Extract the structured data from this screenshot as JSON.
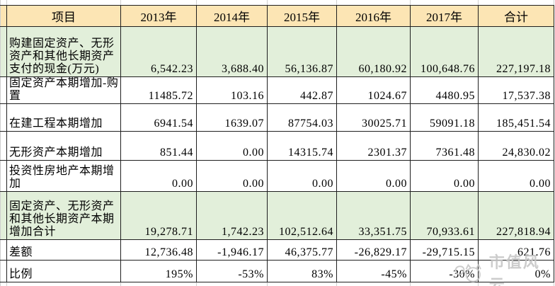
{
  "table": {
    "header": [
      "项目",
      "2013年",
      "2014年",
      "2015年",
      "2016年",
      "2017年",
      "合计"
    ],
    "rows": [
      {
        "label": "购建固定资产、无形资产和其他长期资产支付的现金(万元)",
        "values": [
          "6,542.23",
          "3,688.40",
          "56,136.87",
          "60,180.92",
          "100,648.76",
          "227,197.18"
        ],
        "highlight": true,
        "indicators": []
      },
      {
        "label": "固定资产本期增加-购置",
        "values": [
          "11485.72",
          "103.16",
          "442.87",
          "1024.67",
          "4480.95",
          "17,537.38"
        ],
        "highlight": false,
        "indicators": []
      },
      {
        "label": "在建工程本期增加",
        "values": [
          "6941.54",
          "1639.07",
          "87754.03",
          "30025.71",
          "59091.18",
          "185,451.54"
        ],
        "highlight": false,
        "indicators": []
      },
      {
        "label": "无形资产本期增加",
        "values": [
          "851.44",
          "0.00",
          "14315.74",
          "2301.37",
          "7361.48",
          "24,830.02"
        ],
        "highlight": false,
        "indicators": []
      },
      {
        "label": "投资性房地产本期增加",
        "values": [
          "0.00",
          "0.00",
          "0.00",
          "0.00",
          "0.00",
          "0.00"
        ],
        "highlight": false,
        "indicators": []
      },
      {
        "label": "固定资产、无形资产和其他长期资产本期增加合计",
        "values": [
          "19,278.71",
          "1,742.23",
          "102,512.64",
          "33,351.75",
          "70,933.61",
          "227,818.94"
        ],
        "highlight": true,
        "indicators": [
          0,
          1,
          3,
          4
        ]
      },
      {
        "label": "差额",
        "values": [
          "12,736.48",
          "-1,946.17",
          "46,375.77",
          "-26,829.17",
          "-29,715.15",
          "621.76"
        ],
        "highlight": false,
        "indicators": []
      },
      {
        "label": "比例",
        "values": [
          "195%",
          "-53%",
          "83%",
          "-45%",
          "-30%",
          "0%"
        ],
        "highlight": false,
        "indicators": []
      }
    ]
  },
  "watermark": {
    "text": "市值风云"
  },
  "colors": {
    "header_fill": "#fce5b4",
    "highlight_fill": "#e2efda",
    "border": "#1f1f1f",
    "gridline": "#cfcfcf",
    "error_indicator_green": "#1e7e34",
    "watermark_gray": "#c4c4c4"
  }
}
